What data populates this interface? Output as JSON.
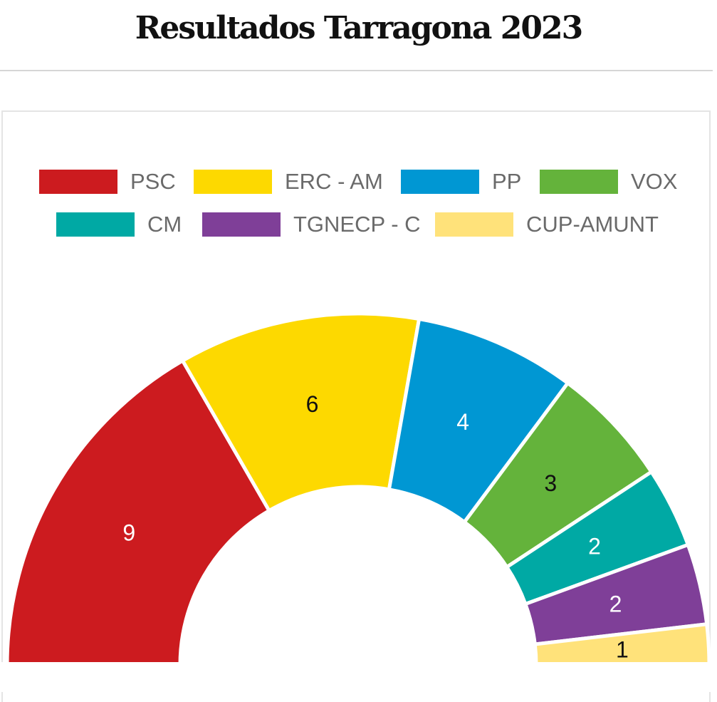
{
  "page": {
    "title": "Resultados Tarragona 2023"
  },
  "chart_data": {
    "type": "pie",
    "variant": "half-donut",
    "title": "Resultados Tarragona 2023",
    "legend_position": "top",
    "series": [
      {
        "name": "PSC",
        "value": 9,
        "color": "#cc1b1f",
        "label_color": "#ffffff"
      },
      {
        "name": "ERC - AM",
        "value": 6,
        "color": "#fdd900",
        "label_color": "#111111"
      },
      {
        "name": "PP",
        "value": 4,
        "color": "#0097d3",
        "label_color": "#ffffff"
      },
      {
        "name": "VOX",
        "value": 3,
        "color": "#64b33b",
        "label_color": "#111111"
      },
      {
        "name": "CM",
        "value": 2,
        "color": "#00a9a4",
        "label_color": "#ffffff"
      },
      {
        "name": "TGNECP - C",
        "value": 2,
        "color": "#7f3f98",
        "label_color": "#ffffff"
      },
      {
        "name": "CUP-AMUNT",
        "value": 1,
        "color": "#ffe27a",
        "label_color": "#111111"
      }
    ]
  }
}
